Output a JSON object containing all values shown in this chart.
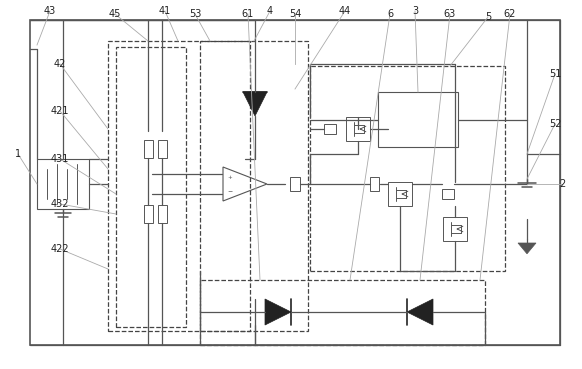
{
  "fig_width": 5.82,
  "fig_height": 3.69,
  "dpi": 100,
  "bg_color": "#ffffff",
  "lc": "#555555",
  "dc": "#222222",
  "gl": "#aaaaaa"
}
